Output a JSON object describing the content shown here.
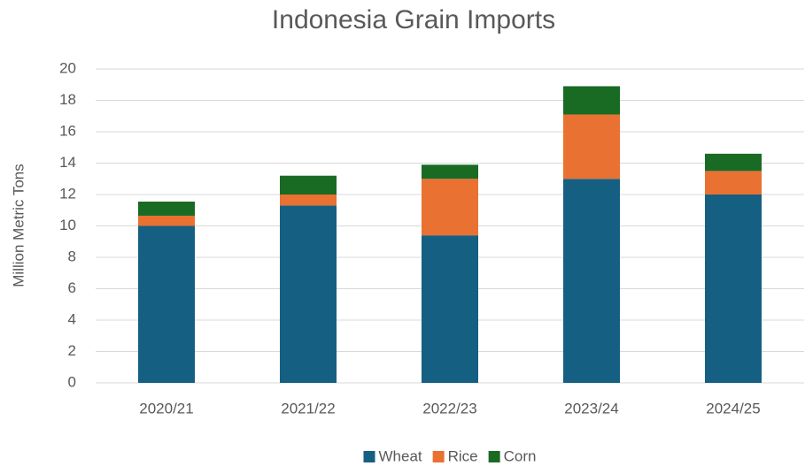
{
  "chart_data": {
    "type": "stacked_bar",
    "title": "Indonesia Grain Imports",
    "y_label": "Million Metric Tons",
    "categories": [
      "2020/21",
      "2021/22",
      "2022/23",
      "2023/24",
      "2024/25"
    ],
    "series": [
      {
        "name": "Wheat",
        "color": "#156082",
        "values": [
          10.0,
          11.3,
          9.4,
          13.0,
          12.0
        ]
      },
      {
        "name": "Rice",
        "color": "#e97132",
        "values": [
          0.65,
          0.7,
          3.6,
          4.1,
          1.5
        ]
      },
      {
        "name": "Corn",
        "color": "#196b24",
        "values": [
          0.9,
          1.2,
          0.9,
          1.8,
          1.1
        ]
      }
    ],
    "ylim": [
      0,
      20
    ],
    "yticks": [
      0,
      2,
      4,
      6,
      8,
      10,
      12,
      14,
      16,
      18,
      20
    ],
    "grid": true,
    "legend": "bottom"
  }
}
